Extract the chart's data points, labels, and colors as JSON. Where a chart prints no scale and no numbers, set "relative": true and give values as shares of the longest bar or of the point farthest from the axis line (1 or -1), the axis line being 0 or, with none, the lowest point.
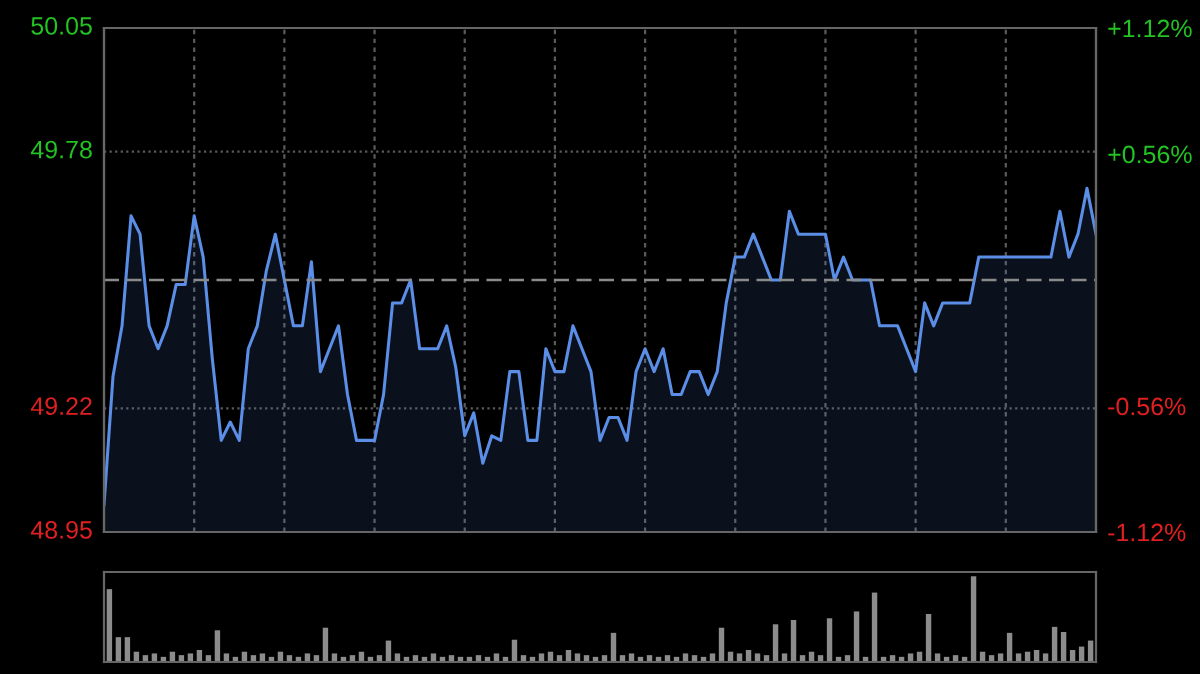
{
  "chart_data": [
    {
      "type": "area",
      "color": "#5b8ee6",
      "categories": [
        null,
        null,
        null,
        null,
        null,
        null,
        null,
        null,
        null,
        null,
        null,
        null,
        null,
        null,
        null,
        null,
        null,
        null,
        null,
        null,
        null,
        null,
        null,
        null,
        null,
        null,
        null,
        null,
        null,
        null,
        null,
        null,
        null,
        null,
        null,
        null,
        null,
        null,
        null,
        null,
        null,
        null,
        null,
        null,
        null,
        null,
        null,
        null,
        null,
        null,
        null,
        null,
        null,
        null,
        null,
        null,
        null,
        null,
        null,
        null,
        null,
        null,
        null,
        null,
        null,
        null,
        null,
        null,
        null,
        null,
        null,
        null,
        null,
        null,
        null,
        null,
        null,
        null,
        null,
        null,
        null,
        null,
        null,
        null,
        null,
        null,
        null,
        null,
        null,
        null,
        null,
        null,
        null,
        null,
        null,
        null,
        null,
        null,
        null,
        null,
        null,
        null,
        null,
        null,
        null,
        null,
        null,
        null,
        null,
        null,
        null
      ],
      "values": [
        49.01,
        49.29,
        49.4,
        49.64,
        49.6,
        49.4,
        49.35,
        49.4,
        49.49,
        49.49,
        49.64,
        49.55,
        49.33,
        49.15,
        49.19,
        49.15,
        49.35,
        49.4,
        49.52,
        49.6,
        49.5,
        49.4,
        49.4,
        49.54,
        49.3,
        49.35,
        49.4,
        49.25,
        49.15,
        49.15,
        49.15,
        49.25,
        49.45,
        49.45,
        49.5,
        49.35,
        49.35,
        49.35,
        49.4,
        49.31,
        49.16,
        49.21,
        49.1,
        49.16,
        49.15,
        49.3,
        49.3,
        49.15,
        49.15,
        49.35,
        49.3,
        49.3,
        49.4,
        49.35,
        49.3,
        49.15,
        49.2,
        49.2,
        49.15,
        49.3,
        49.35,
        49.3,
        49.35,
        49.25,
        49.25,
        49.3,
        49.3,
        49.25,
        49.3,
        49.45,
        49.55,
        49.55,
        49.6,
        49.55,
        49.5,
        49.5,
        49.65,
        49.6,
        49.6,
        49.6,
        49.6,
        49.5,
        49.55,
        49.5,
        49.5,
        49.5,
        49.4,
        49.4,
        49.4,
        49.35,
        49.3,
        49.45,
        49.4,
        49.45,
        49.45,
        49.45,
        49.45,
        49.55,
        49.55,
        49.55,
        49.55,
        49.55,
        49.55,
        49.55,
        49.55,
        49.55,
        49.65,
        49.55,
        49.6,
        49.7,
        49.6
      ],
      "ylim": [
        48.95,
        50.05
      ],
      "yticks": [
        48.95,
        49.22,
        49.78,
        50.05
      ],
      "y2lim": [
        -1.12,
        1.12
      ],
      "y2ticks": [
        {
          "value": -1.12,
          "label": "-1.12%"
        },
        {
          "value": -0.56,
          "label": "-0.56%"
        },
        {
          "value": 0.56,
          "label": "+0.56%"
        },
        {
          "value": 1.12,
          "label": "+1.12%"
        }
      ],
      "ref_lines": [
        {
          "axis": "y",
          "value": 49.5,
          "color": "#8a8a8a",
          "line_style": "dashed"
        }
      ],
      "grid": true,
      "tick_labels": "y"
    },
    {
      "type": "bar",
      "relative": true,
      "color": "#8c8c8c",
      "tick_labels": false,
      "categories": [
        null,
        null,
        null,
        null,
        null,
        null,
        null,
        null,
        null,
        null,
        null,
        null,
        null,
        null,
        null,
        null,
        null,
        null,
        null,
        null,
        null,
        null,
        null,
        null,
        null,
        null,
        null,
        null,
        null,
        null,
        null,
        null,
        null,
        null,
        null,
        null,
        null,
        null,
        null,
        null,
        null,
        null,
        null,
        null,
        null,
        null,
        null,
        null,
        null,
        null,
        null,
        null,
        null,
        null,
        null,
        null,
        null,
        null,
        null,
        null,
        null,
        null,
        null,
        null,
        null,
        null,
        null,
        null,
        null,
        null,
        null,
        null,
        null,
        null,
        null,
        null,
        null,
        null,
        null,
        null,
        null,
        null,
        null,
        null,
        null,
        null,
        null,
        null,
        null,
        null,
        null,
        null,
        null,
        null,
        null,
        null,
        null,
        null,
        null,
        null,
        null,
        null,
        null,
        null,
        null,
        null,
        null,
        null,
        null,
        null
      ],
      "values": [
        0.85,
        0.29,
        0.29,
        0.12,
        0.08,
        0.1,
        0.06,
        0.12,
        0.08,
        0.1,
        0.14,
        0.08,
        0.37,
        0.1,
        0.06,
        0.12,
        0.08,
        0.1,
        0.06,
        0.12,
        0.08,
        0.06,
        0.1,
        0.08,
        0.4,
        0.1,
        0.06,
        0.08,
        0.12,
        0.06,
        0.08,
        0.25,
        0.1,
        0.06,
        0.08,
        0.06,
        0.1,
        0.06,
        0.08,
        0.06,
        0.06,
        0.08,
        0.06,
        0.1,
        0.06,
        0.26,
        0.08,
        0.06,
        0.1,
        0.12,
        0.08,
        0.14,
        0.1,
        0.08,
        0.06,
        0.08,
        0.34,
        0.08,
        0.1,
        0.06,
        0.08,
        0.06,
        0.08,
        0.06,
        0.1,
        0.08,
        0.06,
        0.1,
        0.4,
        0.12,
        0.1,
        0.14,
        0.1,
        0.08,
        0.44,
        0.1,
        0.49,
        0.08,
        0.12,
        0.08,
        0.51,
        0.06,
        0.08,
        0.59,
        0.06,
        0.81,
        0.06,
        0.08,
        0.06,
        0.1,
        0.12,
        0.56,
        0.1,
        0.06,
        0.08,
        0.06,
        1,
        0.12,
        0.08,
        0.1,
        0.34,
        0.1,
        0.12,
        0.14,
        0.1,
        0.41,
        0.35,
        0.14,
        0.18,
        0.25
      ]
    }
  ]
}
